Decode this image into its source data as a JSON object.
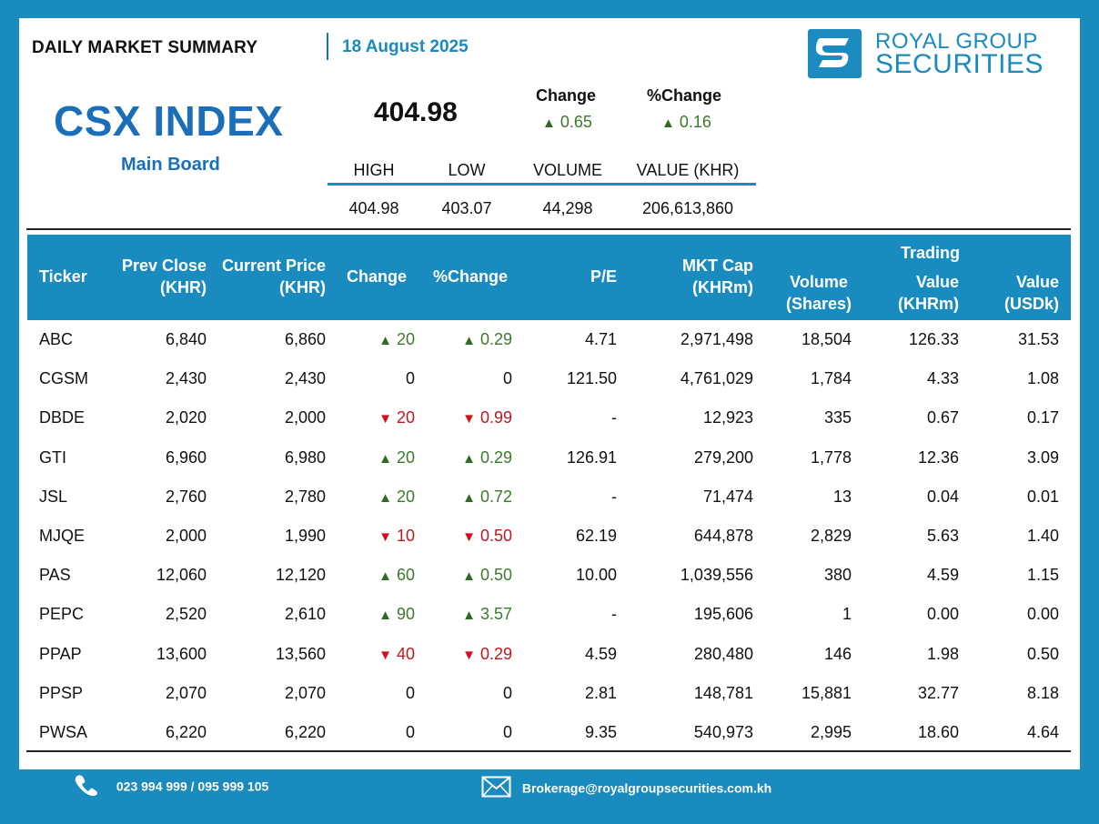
{
  "header": {
    "title": "DAILY MARKET SUMMARY",
    "date": "18 August 2025",
    "logo_line1": "ROYAL GROUP",
    "logo_line2": "SECURITIES"
  },
  "index": {
    "name": "CSX INDEX",
    "board": "Main Board",
    "value": "404.98",
    "change_label": "Change",
    "change_value": "0.65",
    "pct_change_label": "%Change",
    "pct_change_value": "0.16"
  },
  "stats": {
    "headers": [
      "HIGH",
      "LOW",
      "VOLUME",
      "VALUE (KHR)"
    ],
    "values": [
      "404.98",
      "403.07",
      "44,298",
      "206,613,860"
    ]
  },
  "table": {
    "headers": {
      "ticker": "Ticker",
      "prev_close": [
        "Prev Close",
        "(KHR)"
      ],
      "current_price": [
        "Current Price",
        "(KHR)"
      ],
      "change": "Change",
      "pct_change": "%Change",
      "pe": "P/E",
      "mkt_cap": [
        "MKT Cap",
        "(KHRm)"
      ],
      "volume": [
        "Volume",
        "(Shares)"
      ],
      "trading": "Trading",
      "value_khr": [
        "Value",
        "(KHRm)"
      ],
      "value_usd": [
        "Value",
        "(USDk)"
      ]
    },
    "rows": [
      {
        "ticker": "ABC",
        "prev": "6,840",
        "cur": "6,860",
        "dir": "up",
        "chg": "20",
        "pct": "0.29",
        "pe": "4.71",
        "cap": "2,971,498",
        "vol": "18,504",
        "vkhr": "126.33",
        "vusd": "31.53"
      },
      {
        "ticker": "CGSM",
        "prev": "2,430",
        "cur": "2,430",
        "dir": "flat",
        "chg": "0",
        "pct": "0",
        "pe": "121.50",
        "cap": "4,761,029",
        "vol": "1,784",
        "vkhr": "4.33",
        "vusd": "1.08"
      },
      {
        "ticker": "DBDE",
        "prev": "2,020",
        "cur": "2,000",
        "dir": "down",
        "chg": "20",
        "pct": "0.99",
        "pe": "-",
        "cap": "12,923",
        "vol": "335",
        "vkhr": "0.67",
        "vusd": "0.17"
      },
      {
        "ticker": "GTI",
        "prev": "6,960",
        "cur": "6,980",
        "dir": "up",
        "chg": "20",
        "pct": "0.29",
        "pe": "126.91",
        "cap": "279,200",
        "vol": "1,778",
        "vkhr": "12.36",
        "vusd": "3.09"
      },
      {
        "ticker": "JSL",
        "prev": "2,760",
        "cur": "2,780",
        "dir": "up",
        "chg": "20",
        "pct": "0.72",
        "pe": "-",
        "cap": "71,474",
        "vol": "13",
        "vkhr": "0.04",
        "vusd": "0.01"
      },
      {
        "ticker": "MJQE",
        "prev": "2,000",
        "cur": "1,990",
        "dir": "down",
        "chg": "10",
        "pct": "0.50",
        "pe": "62.19",
        "cap": "644,878",
        "vol": "2,829",
        "vkhr": "5.63",
        "vusd": "1.40"
      },
      {
        "ticker": "PAS",
        "prev": "12,060",
        "cur": "12,120",
        "dir": "up",
        "chg": "60",
        "pct": "0.50",
        "pe": "10.00",
        "cap": "1,039,556",
        "vol": "380",
        "vkhr": "4.59",
        "vusd": "1.15"
      },
      {
        "ticker": "PEPC",
        "prev": "2,520",
        "cur": "2,610",
        "dir": "up",
        "chg": "90",
        "pct": "3.57",
        "pe": "-",
        "cap": "195,606",
        "vol": "1",
        "vkhr": "0.00",
        "vusd": "0.00"
      },
      {
        "ticker": "PPAP",
        "prev": "13,600",
        "cur": "13,560",
        "dir": "down",
        "chg": "40",
        "pct": "0.29",
        "pe": "4.59",
        "cap": "280,480",
        "vol": "146",
        "vkhr": "1.98",
        "vusd": "0.50"
      },
      {
        "ticker": "PPSP",
        "prev": "2,070",
        "cur": "2,070",
        "dir": "flat",
        "chg": "0",
        "pct": "0",
        "pe": "2.81",
        "cap": "148,781",
        "vol": "15,881",
        "vkhr": "32.77",
        "vusd": "8.18"
      },
      {
        "ticker": "PWSA",
        "prev": "6,220",
        "cur": "6,220",
        "dir": "flat",
        "chg": "0",
        "pct": "0",
        "pe": "9.35",
        "cap": "540,973",
        "vol": "2,995",
        "vkhr": "18.60",
        "vusd": "4.64"
      }
    ]
  },
  "footer": {
    "phone": "023 994 999 / 095 999 105",
    "email": "Brokerage@royalgroupsecurities.com.kh",
    "phone_icon": "phone-icon",
    "email_icon": "envelope-icon"
  },
  "colors": {
    "brand_blue": "#1a8bbf",
    "up_green": "#3b7a2b",
    "down_red": "#c0171f"
  }
}
